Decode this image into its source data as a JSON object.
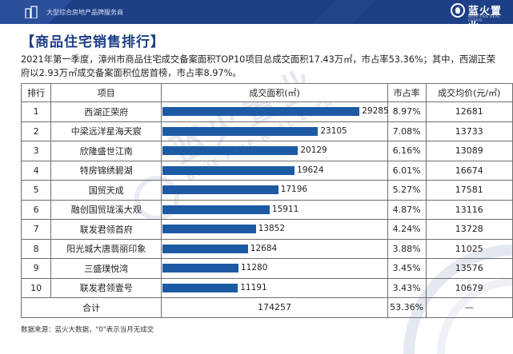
{
  "header": {
    "subtitle": "大型综合房地产品牌服务商",
    "logo_cn": "蓝火置业",
    "logo_en": "BLUE FIRE REAL ESTATE",
    "brand_color": "#1d3f86",
    "bar_color": "#1d5aa4"
  },
  "section_title": "【商品住宅销售排行】",
  "intro": "2021年第一季度，漳州市商品住宅成交备案面积TOP10项目总成交面积17.43万㎡，市占率53.36%；其中，西湖正荣府以2.93万㎡成交备案面积位居首榜，市占率8.97%。",
  "table": {
    "headers": {
      "rank": "排行",
      "project": "项目",
      "area": "成交面积(㎡)",
      "share": "市占率",
      "price": "成交均价(元/㎡)"
    },
    "rows": [
      {
        "rank": "1",
        "project": "西湖正荣府",
        "area": "29285",
        "share": "8.97%",
        "price": "12681"
      },
      {
        "rank": "2",
        "project": "中梁远洋星海天宸",
        "area": "23105",
        "share": "7.08%",
        "price": "13733"
      },
      {
        "rank": "3",
        "project": "欣隆盛世江南",
        "area": "20129",
        "share": "6.16%",
        "price": "13089"
      },
      {
        "rank": "4",
        "project": "特房锦绣碧湖",
        "area": "19624",
        "share": "6.01%",
        "price": "16674"
      },
      {
        "rank": "5",
        "project": "国贸天成",
        "area": "17196",
        "share": "5.27%",
        "price": "17581"
      },
      {
        "rank": "6",
        "project": "融创国贸珑溪大观",
        "area": "15911",
        "share": "4.87%",
        "price": "13116"
      },
      {
        "rank": "7",
        "project": "联发君领首府",
        "area": "13852",
        "share": "4.24%",
        "price": "13728"
      },
      {
        "rank": "8",
        "project": "阳光城大唐翡丽印象",
        "area": "12684",
        "share": "3.88%",
        "price": "11025"
      },
      {
        "rank": "9",
        "project": "三盛璞悦湾",
        "area": "11280",
        "share": "3.45%",
        "price": "13576"
      },
      {
        "rank": "10",
        "project": "联发君领壹号",
        "area": "11191",
        "share": "3.43%",
        "price": "10679"
      }
    ],
    "total": {
      "label": "合计",
      "area": "174257",
      "share": "53.36%",
      "price": "—"
    }
  },
  "chart_data": {
    "type": "bar",
    "categories": [
      "西湖正荣府",
      "中梁远洋星海天宸",
      "欣隆盛世江南",
      "特房锦绣碧湖",
      "国贸天成",
      "融创国贸珑溪大观",
      "联发君领首府",
      "阳光城大唐翡丽印象",
      "三盛璞悦湾",
      "联发君领壹号"
    ],
    "values": [
      29285,
      23105,
      20129,
      19624,
      17196,
      15911,
      13852,
      12684,
      11280,
      11191
    ],
    "title": "",
    "xlabel": "",
    "ylabel": "成交面积(㎡)"
  },
  "note": "数据来源：蓝火大数据，\"0\"表示当月无成交",
  "watermark": {
    "cn": "蓝火置业",
    "en": "BLUE FIRE REAL ESTATE"
  }
}
